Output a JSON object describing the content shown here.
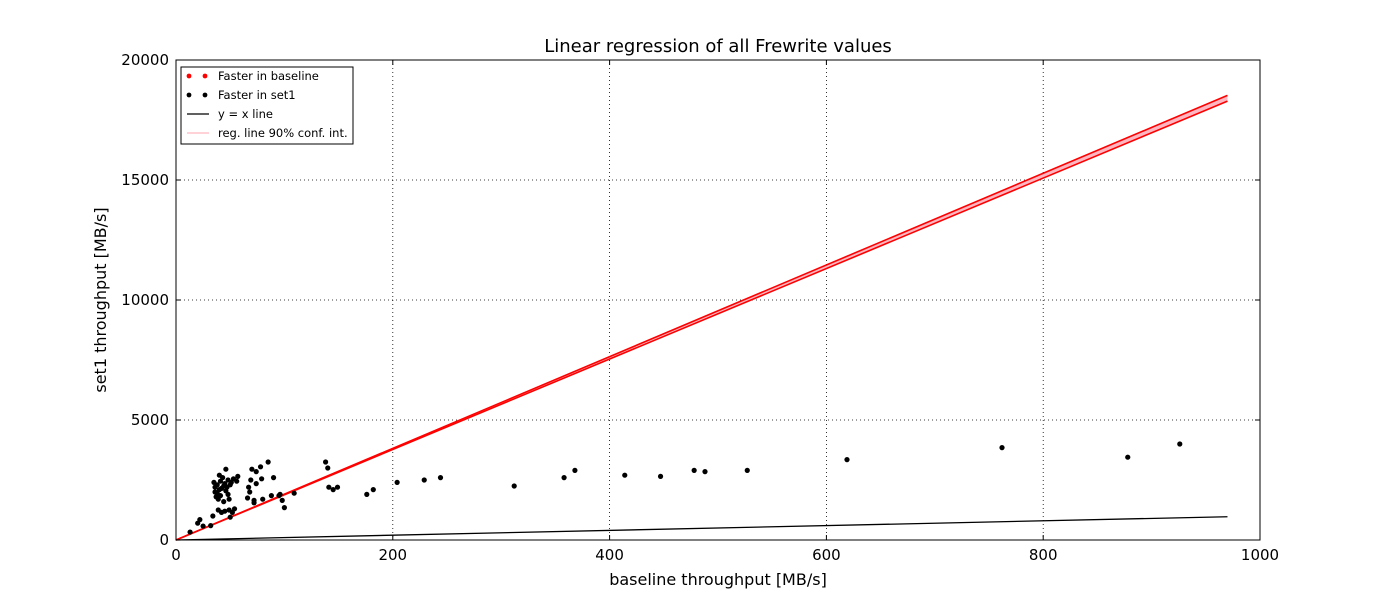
{
  "chart_data": {
    "type": "scatter",
    "title": "Linear regression of all Frewrite values",
    "xlabel": "baseline throughput [MB/s]",
    "ylabel": "set1 throughput [MB/s]",
    "xlim": [
      0,
      1000
    ],
    "ylim": [
      0,
      20000
    ],
    "xticks": [
      0,
      200,
      400,
      600,
      800,
      1000
    ],
    "yticks": [
      0,
      5000,
      10000,
      15000,
      20000
    ],
    "grid": true,
    "grid_style": "dotted",
    "legend_position": "top-left",
    "colors": {
      "baseline": "#ff0000",
      "set1": "#000000",
      "yx_line": "#000000",
      "reg_line": "#ff0000",
      "conf_band": "#ffb6c1"
    },
    "legend": [
      {
        "key": "baseline",
        "label": "Faster in baseline",
        "kind": "points"
      },
      {
        "key": "set1",
        "label": "Faster in set1",
        "kind": "points"
      },
      {
        "key": "yx",
        "label": "y = x line",
        "kind": "line"
      },
      {
        "key": "conf",
        "label": "reg. line 90% conf. int.",
        "kind": "band"
      }
    ],
    "series": [
      {
        "name": "Faster in baseline",
        "color": "#ff0000",
        "points": []
      },
      {
        "name": "Faster in set1",
        "color": "#000000",
        "points": [
          [
            13,
            330
          ],
          [
            20,
            700
          ],
          [
            22,
            850
          ],
          [
            25,
            580
          ],
          [
            32,
            600
          ],
          [
            34,
            1000
          ],
          [
            35,
            2400
          ],
          [
            36,
            2200
          ],
          [
            36,
            2000
          ],
          [
            37,
            1800
          ],
          [
            38,
            2300
          ],
          [
            38,
            1950
          ],
          [
            39,
            1250
          ],
          [
            39,
            1700
          ],
          [
            40,
            2100
          ],
          [
            40,
            2700
          ],
          [
            41,
            2450
          ],
          [
            41,
            1850
          ],
          [
            42,
            2150
          ],
          [
            42,
            1150
          ],
          [
            43,
            2600
          ],
          [
            44,
            2250
          ],
          [
            44,
            1600
          ],
          [
            45,
            2350
          ],
          [
            45,
            1200
          ],
          [
            46,
            2050
          ],
          [
            46,
            2950
          ],
          [
            47,
            2200
          ],
          [
            48,
            1900
          ],
          [
            48,
            2500
          ],
          [
            49,
            1700
          ],
          [
            49,
            1250
          ],
          [
            50,
            2300
          ],
          [
            50,
            950
          ],
          [
            51,
            2400
          ],
          [
            52,
            1150
          ],
          [
            53,
            2550
          ],
          [
            54,
            1300
          ],
          [
            56,
            2450
          ],
          [
            57,
            2650
          ],
          [
            66,
            1750
          ],
          [
            67,
            2200
          ],
          [
            68,
            2000
          ],
          [
            69,
            2500
          ],
          [
            70,
            2950
          ],
          [
            72,
            1650
          ],
          [
            72,
            1550
          ],
          [
            74,
            2850
          ],
          [
            74,
            2350
          ],
          [
            78,
            3050
          ],
          [
            79,
            2550
          ],
          [
            80,
            1700
          ],
          [
            85,
            3250
          ],
          [
            88,
            1850
          ],
          [
            90,
            2600
          ],
          [
            95,
            1850
          ],
          [
            96,
            1900
          ],
          [
            98,
            1650
          ],
          [
            100,
            1350
          ],
          [
            109,
            1950
          ],
          [
            138,
            3250
          ],
          [
            140,
            3000
          ],
          [
            141,
            2200
          ],
          [
            145,
            2100
          ],
          [
            149,
            2200
          ],
          [
            176,
            1900
          ],
          [
            182,
            2100
          ],
          [
            204,
            2400
          ],
          [
            229,
            2500
          ],
          [
            244,
            2600
          ],
          [
            312,
            2250
          ],
          [
            358,
            2600
          ],
          [
            368,
            2900
          ],
          [
            414,
            2700
          ],
          [
            447,
            2650
          ],
          [
            478,
            2900
          ],
          [
            488,
            2850
          ],
          [
            527,
            2900
          ],
          [
            619,
            3350
          ],
          [
            762,
            3850
          ],
          [
            878,
            3450
          ],
          [
            926,
            4000
          ]
        ]
      }
    ],
    "yx_line": {
      "name": "y = x line",
      "x_range": [
        0,
        970
      ]
    },
    "regression": {
      "name": "reg. line 90% conf. int.",
      "x_range": [
        0,
        970
      ],
      "slope_lower": 18.85,
      "slope_upper": 19.1,
      "intercept": 0
    }
  }
}
